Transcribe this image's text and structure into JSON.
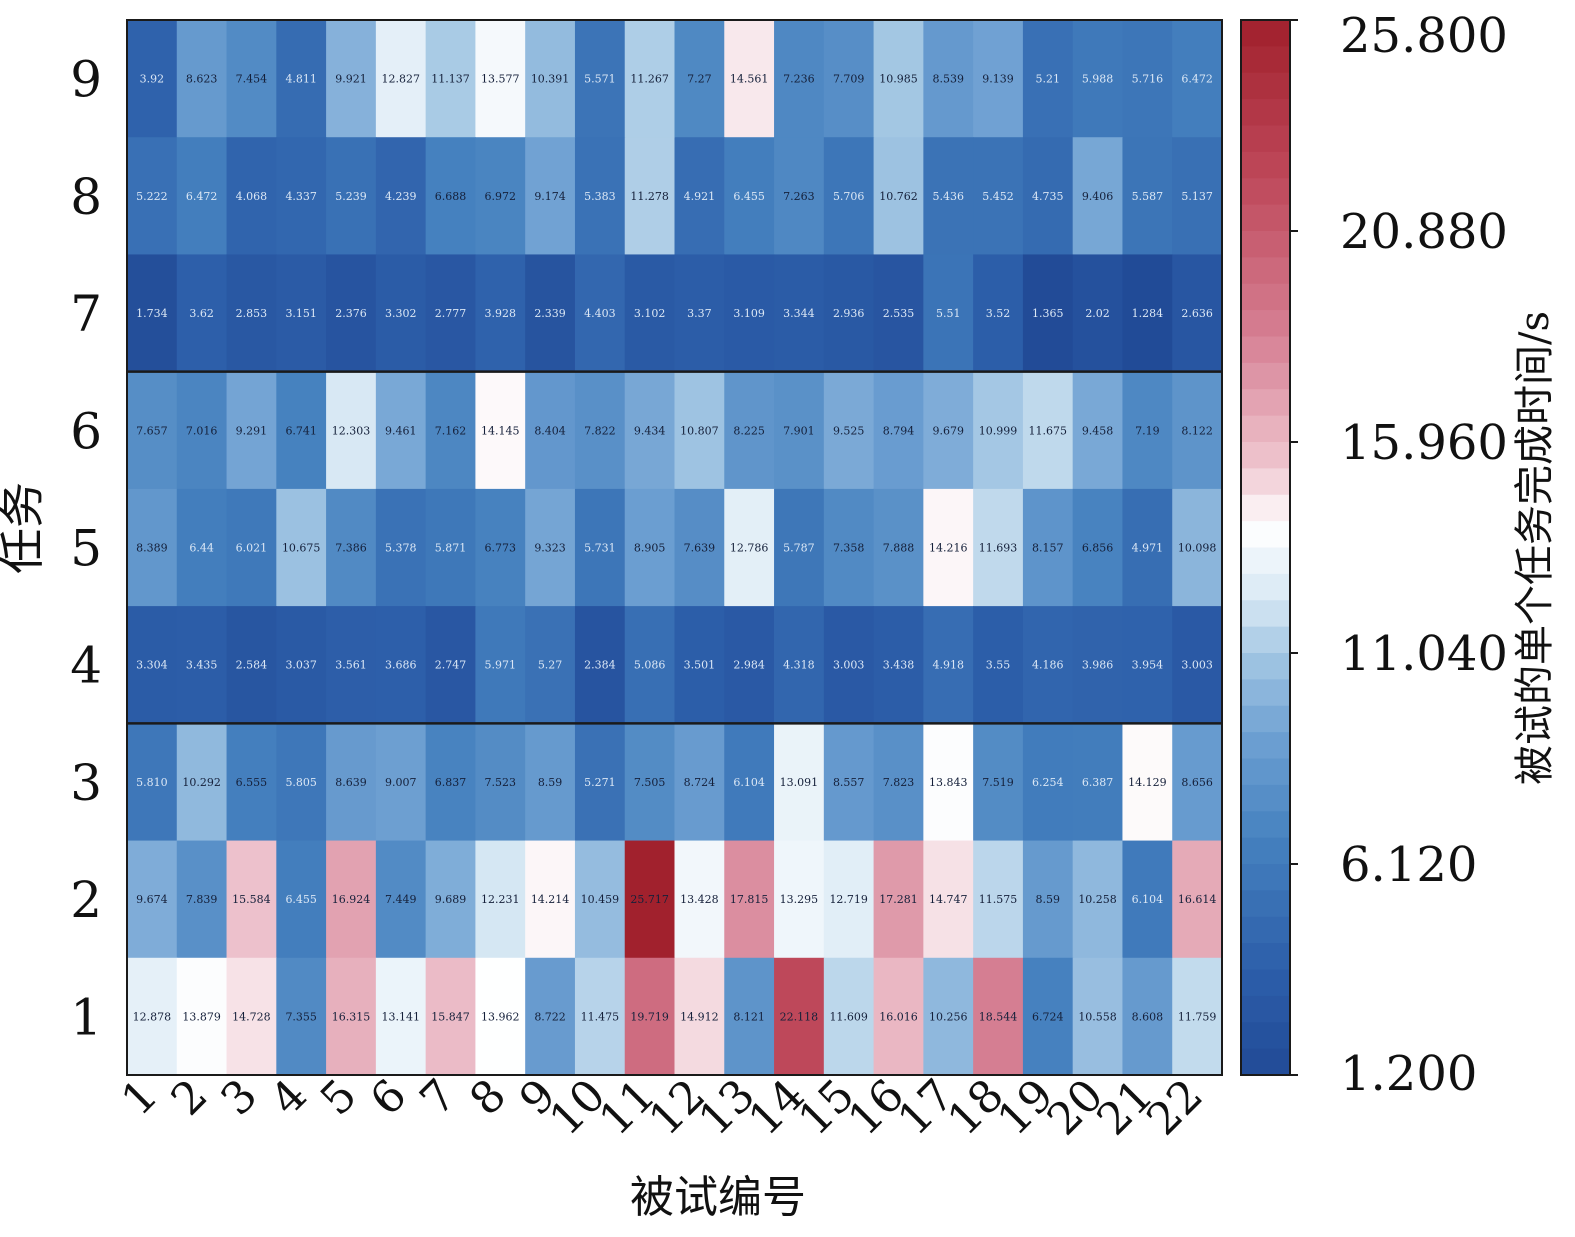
{
  "chart_data": {
    "type": "heatmap",
    "xlabel": "被试编号",
    "ylabel": "任务",
    "colorbar_label": "被试的单个任务完成时间/s",
    "colorbar_ticks": [
      "25.800",
      "20.880",
      "15.960",
      "11.040",
      "6.120",
      "1.200"
    ],
    "colorbar_range": [
      1.2,
      25.8
    ],
    "x_categories": [
      "1",
      "2",
      "3",
      "4",
      "5",
      "6",
      "7",
      "8",
      "9",
      "10",
      "11",
      "12",
      "13",
      "14",
      "15",
      "16",
      "17",
      "18",
      "19",
      "20",
      "21",
      "22"
    ],
    "y_categories": [
      "1",
      "2",
      "3",
      "4",
      "5",
      "6",
      "7",
      "8",
      "9"
    ],
    "group_separators_after_task": [
      3,
      6
    ],
    "rows": [
      {
        "task": "9",
        "values": [
          "3.92",
          "8.623",
          "7.454",
          "4.811",
          "9.921",
          "12.827",
          "11.137",
          "13.577",
          "10.391",
          "5.571",
          "11.267",
          "7.27",
          "14.561",
          "7.236",
          "7.709",
          "10.985",
          "8.539",
          "9.139",
          "5.21",
          "5.988",
          "5.716",
          "6.472"
        ]
      },
      {
        "task": "8",
        "values": [
          "5.222",
          "6.472",
          "4.068",
          "4.337",
          "5.239",
          "4.239",
          "6.688",
          "6.972",
          "9.174",
          "5.383",
          "11.278",
          "4.921",
          "6.455",
          "7.263",
          "5.706",
          "10.762",
          "5.436",
          "5.452",
          "4.735",
          "9.406",
          "5.587",
          "5.137"
        ]
      },
      {
        "task": "7",
        "values": [
          "1.734",
          "3.62",
          "2.853",
          "3.151",
          "2.376",
          "3.302",
          "2.777",
          "3.928",
          "2.339",
          "4.403",
          "3.102",
          "3.37",
          "3.109",
          "3.344",
          "2.936",
          "2.535",
          "5.51",
          "3.52",
          "1.365",
          "2.02",
          "1.284",
          "2.636"
        ]
      },
      {
        "task": "6",
        "values": [
          "7.657",
          "7.016",
          "9.291",
          "6.741",
          "12.303",
          "9.461",
          "7.162",
          "14.145",
          "8.404",
          "7.822",
          "9.434",
          "10.807",
          "8.225",
          "7.901",
          "9.525",
          "8.794",
          "9.679",
          "10.999",
          "11.675",
          "9.458",
          "7.19",
          "8.122"
        ]
      },
      {
        "task": "5",
        "values": [
          "8.389",
          "6.44",
          "6.021",
          "10.675",
          "7.386",
          "5.378",
          "5.871",
          "6.773",
          "9.323",
          "5.731",
          "8.905",
          "7.639",
          "12.786",
          "5.787",
          "7.358",
          "7.888",
          "14.216",
          "11.693",
          "8.157",
          "6.856",
          "4.971",
          "10.098"
        ]
      },
      {
        "task": "4",
        "values": [
          "3.304",
          "3.435",
          "2.584",
          "3.037",
          "3.561",
          "3.686",
          "2.747",
          "5.971",
          "5.27",
          "2.384",
          "5.086",
          "3.501",
          "2.984",
          "4.318",
          "3.003",
          "3.438",
          "4.918",
          "3.55",
          "4.186",
          "3.986",
          "3.954",
          "3.003"
        ]
      },
      {
        "task": "3",
        "values": [
          "5.810",
          "10.292",
          "6.555",
          "5.805",
          "8.639",
          "9.007",
          "6.837",
          "7.523",
          "8.59",
          "5.271",
          "7.505",
          "8.724",
          "6.104",
          "13.091",
          "8.557",
          "7.823",
          "13.843",
          "7.519",
          "6.254",
          "6.387",
          "14.129",
          "8.656"
        ]
      },
      {
        "task": "2",
        "values": [
          "9.674",
          "7.839",
          "15.584",
          "6.455",
          "16.924",
          "7.449",
          "9.689",
          "12.231",
          "14.214",
          "10.459",
          "25.717",
          "13.428",
          "17.815",
          "13.295",
          "12.719",
          "17.281",
          "14.747",
          "11.575",
          "8.59",
          "10.258",
          "6.104",
          "16.614"
        ]
      },
      {
        "task": "1",
        "values": [
          "12.878",
          "13.879",
          "14.728",
          "7.355",
          "16.315",
          "13.141",
          "15.847",
          "13.962",
          "8.722",
          "11.475",
          "19.719",
          "14.912",
          "8.121",
          "22.118",
          "11.609",
          "16.016",
          "10.256",
          "18.544",
          "6.724",
          "10.558",
          "8.608",
          "11.759"
        ]
      }
    ]
  }
}
